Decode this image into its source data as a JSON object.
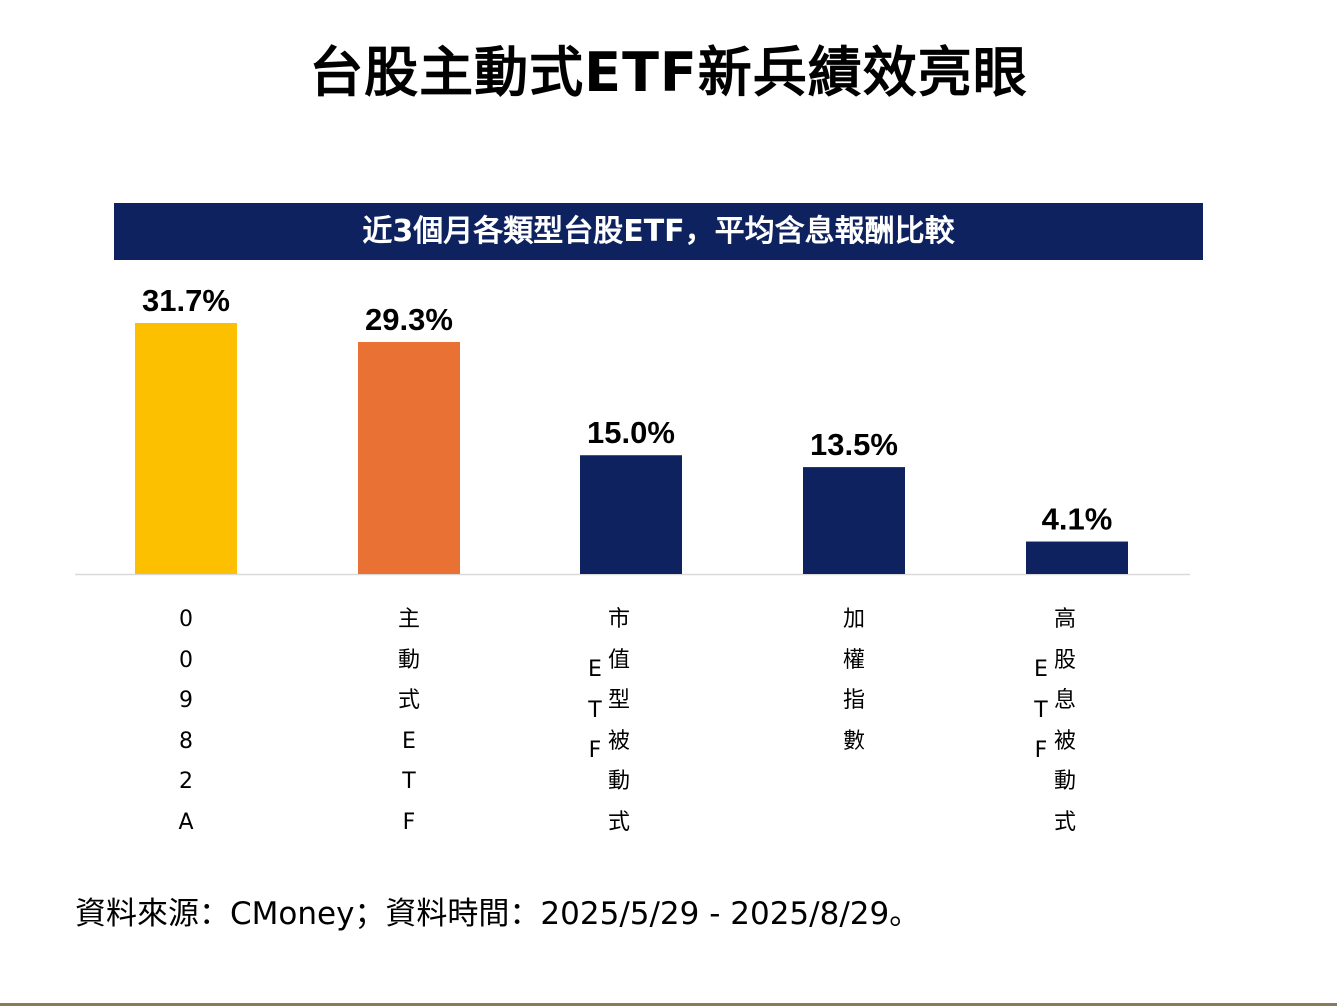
{
  "main_title": "台股主動式ETF新兵績效亮眼",
  "chart_data": {
    "type": "bar",
    "title": "近3個月各類型台股ETF，平均含息報酬比較",
    "categories": [
      "00982A",
      "主動式ETF",
      "市值型被動式ETF",
      "加權指數",
      "高股息被動式ETF"
    ],
    "category_label_columns": [
      [
        [
          "0",
          "0",
          "9",
          "8",
          "2",
          "A"
        ]
      ],
      [
        [
          "主",
          "動",
          "式",
          "E",
          "T",
          "F"
        ]
      ],
      [
        [
          "E",
          "T",
          "F"
        ],
        [
          "市",
          "值",
          "型",
          "被",
          "動",
          "式"
        ]
      ],
      [
        [
          "加",
          "權",
          "指",
          "數"
        ]
      ],
      [
        [
          "E",
          "T",
          "F"
        ],
        [
          "高",
          "股",
          "息",
          "被",
          "動",
          "式"
        ]
      ]
    ],
    "values": [
      31.7,
      29.3,
      15.0,
      13.5,
      4.1
    ],
    "value_labels": [
      "31.7%",
      "29.3%",
      "15.0%",
      "13.5%",
      "4.1%"
    ],
    "unit": "%",
    "colors": [
      "#fcc000",
      "#ea7134",
      "#0e2260",
      "#0e2260",
      "#0e2260"
    ],
    "ylim": [
      0,
      31.7
    ],
    "xlabel": "",
    "ylabel": "",
    "grid": false,
    "legend": false
  },
  "source_note": "資料來源：CMoney；資料時間：2025/5/29 - 2025/8/29。",
  "colors": {
    "banner": "#0e2260",
    "baseline": "#d9d9d9",
    "bottom_rule": "#8a7a5a"
  }
}
